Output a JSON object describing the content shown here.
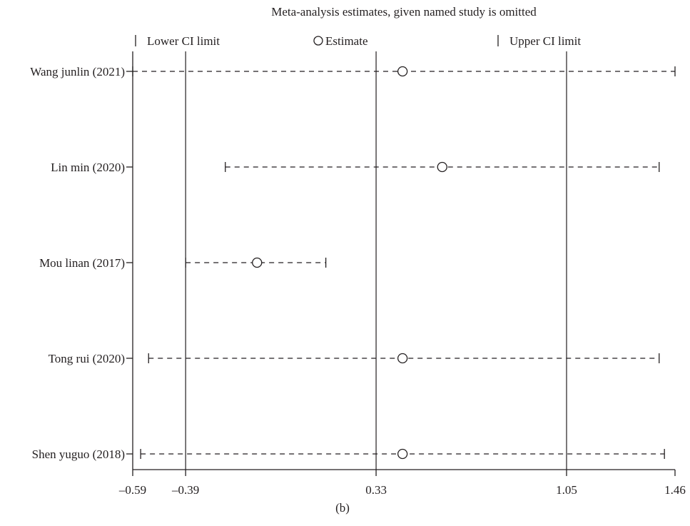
{
  "chart_data": {
    "type": "scatter",
    "title": "Meta-analysis estimates, given named study is omitted",
    "caption": "(b)",
    "legend": {
      "placement": "top",
      "items": [
        {
          "label": "Lower CI limit",
          "marker": "tick"
        },
        {
          "label": "Estimate",
          "marker": "circle"
        },
        {
          "label": "Upper CI limit",
          "marker": "tick"
        }
      ]
    },
    "xlim": [
      -0.59,
      1.46
    ],
    "x_ticks": [
      -0.59,
      -0.39,
      0.33,
      1.05,
      1.46
    ],
    "x_tick_labels": [
      "–0.59",
      "–0.39",
      "0.33",
      "1.05",
      "1.46"
    ],
    "reference_lines": [
      -0.39,
      0.33,
      1.05
    ],
    "studies": [
      {
        "label": "Wang junlin (2021)",
        "lower": -0.59,
        "estimate": 0.43,
        "upper": 1.46
      },
      {
        "label": "Lin min (2020)",
        "lower": -0.24,
        "estimate": 0.58,
        "upper": 1.4
      },
      {
        "label": "Mou linan (2017)",
        "lower": -0.39,
        "estimate": -0.12,
        "upper": 0.14
      },
      {
        "label": "Tong rui (2020)",
        "lower": -0.53,
        "estimate": 0.43,
        "upper": 1.4
      },
      {
        "label": "Shen yuguo (2018)",
        "lower": -0.56,
        "estimate": 0.43,
        "upper": 1.42
      }
    ],
    "colors": {
      "ink": "#231f20",
      "background": "#ffffff"
    }
  }
}
